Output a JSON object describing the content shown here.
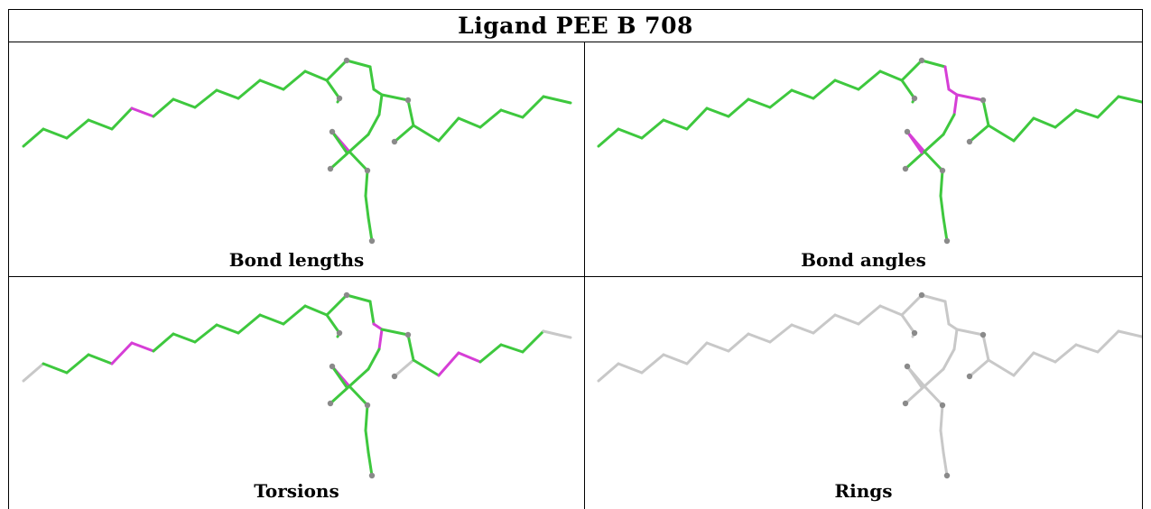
{
  "title": "Ligand PEE B 708",
  "colors": {
    "normal": "#3ec83e",
    "outlier": "#d63ed6",
    "unassessed": "#c8c8c8",
    "atom": "#8a8a8a"
  },
  "panels": [
    {
      "caption": "Bond lengths",
      "scheme": "bonds",
      "outliers": [
        [
          5,
          6
        ],
        [
          26,
          27
        ],
        [
          27,
          28
        ]
      ]
    },
    {
      "caption": "Bond angles",
      "scheme": "angles",
      "outliers": [
        [
          17,
          18
        ],
        [
          18,
          19
        ],
        [
          19,
          20
        ],
        [
          20,
          21
        ],
        [
          20,
          22
        ],
        [
          26,
          27
        ],
        [
          27,
          30
        ]
      ]
    },
    {
      "caption": "Torsions",
      "scheme": "torsions",
      "outliers": [
        [
          4,
          5
        ],
        [
          5,
          6
        ],
        [
          19,
          20
        ],
        [
          20,
          21
        ],
        [
          35,
          36
        ],
        [
          36,
          37
        ],
        [
          26,
          27
        ],
        [
          27,
          28
        ]
      ],
      "grey": [
        [
          0,
          1
        ],
        [
          17,
          18
        ],
        [
          24,
          25
        ],
        [
          40,
          41
        ]
      ]
    },
    {
      "caption": "Rings",
      "scheme": "rings",
      "outliers": [],
      "grey": []
    }
  ]
}
